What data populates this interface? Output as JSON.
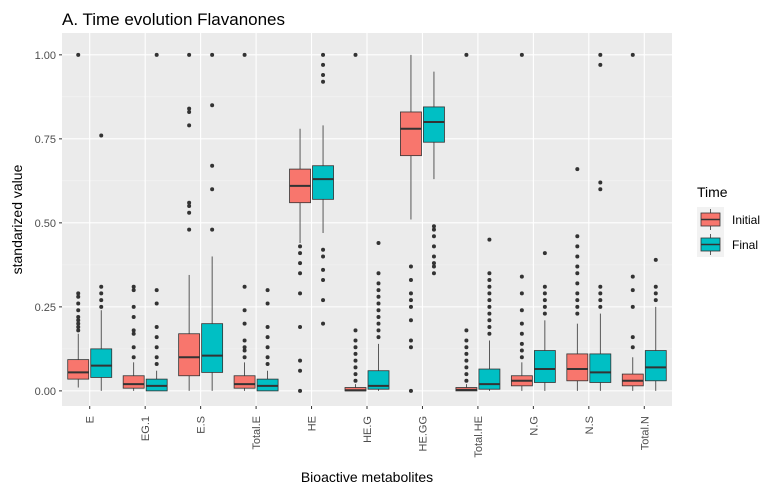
{
  "chart_data": {
    "type": "boxplot",
    "title": "A. Time evolution Flavanones",
    "xlabel": "Bioactive metabolites",
    "ylabel": "standarized value",
    "ylim": [
      -0.045,
      1.065
    ],
    "yticks": [
      0.0,
      0.25,
      0.5,
      0.75,
      1.0
    ],
    "ytick_labels": [
      "0.00",
      "0.25",
      "0.50",
      "0.75",
      "1.00"
    ],
    "grid": true,
    "legend": {
      "title": "Time",
      "placement": "right"
    },
    "categories": [
      "E",
      "EG.1",
      "E.S",
      "Total.E",
      "HE",
      "HE.G",
      "HE.GG",
      "Total.HE",
      "N.G",
      "N.S",
      "Total.N"
    ],
    "series": [
      {
        "name": "Initial",
        "color": "#F8766D",
        "boxes": [
          {
            "lower": 0.01,
            "q1": 0.035,
            "median": 0.055,
            "q3": 0.093,
            "upper": 0.17,
            "outliers": [
              0.18,
              0.19,
              0.2,
              0.21,
              0.22,
              0.24,
              0.26,
              0.28,
              0.29,
              1.0
            ]
          },
          {
            "lower": 0.0,
            "q1": 0.008,
            "median": 0.02,
            "q3": 0.045,
            "upper": 0.085,
            "outliers": [
              0.1,
              0.13,
              0.17,
              0.18,
              0.22,
              0.25,
              0.3,
              0.31
            ]
          },
          {
            "lower": 0.0,
            "q1": 0.045,
            "median": 0.1,
            "q3": 0.17,
            "upper": 0.345,
            "outliers": [
              0.48,
              0.53,
              0.55,
              0.56,
              0.79,
              0.83,
              0.84,
              1.0
            ]
          },
          {
            "lower": 0.0,
            "q1": 0.008,
            "median": 0.02,
            "q3": 0.045,
            "upper": 0.085,
            "outliers": [
              0.1,
              0.12,
              0.13,
              0.15,
              0.2,
              0.24,
              0.31,
              1.0
            ]
          },
          {
            "lower": 0.44,
            "q1": 0.56,
            "median": 0.61,
            "q3": 0.66,
            "upper": 0.78,
            "outliers": [
              0.0,
              0.06,
              0.09,
              0.19,
              0.29,
              0.35,
              0.38,
              0.41,
              0.43
            ]
          },
          {
            "lower": 0.0,
            "q1": 0.0,
            "median": 0.002,
            "q3": 0.01,
            "upper": 0.02,
            "outliers": [
              0.03,
              0.05,
              0.07,
              0.09,
              0.11,
              0.13,
              0.15,
              0.18,
              1.0
            ]
          },
          {
            "lower": 0.51,
            "q1": 0.7,
            "median": 0.78,
            "q3": 0.83,
            "upper": 1.0,
            "outliers": [
              0.0,
              0.13,
              0.15,
              0.21,
              0.25,
              0.27,
              0.29,
              0.33,
              0.37
            ]
          },
          {
            "lower": 0.0,
            "q1": 0.0,
            "median": 0.003,
            "q3": 0.01,
            "upper": 0.02,
            "outliers": [
              0.03,
              0.05,
              0.07,
              0.09,
              0.11,
              0.13,
              0.15,
              0.18,
              1.0
            ]
          },
          {
            "lower": 0.0,
            "q1": 0.015,
            "median": 0.03,
            "q3": 0.045,
            "upper": 0.085,
            "outliers": [
              0.1,
              0.12,
              0.14,
              0.17,
              0.2,
              0.24,
              0.29,
              0.34,
              1.0
            ]
          },
          {
            "lower": 0.0,
            "q1": 0.03,
            "median": 0.065,
            "q3": 0.11,
            "upper": 0.2,
            "outliers": [
              0.23,
              0.25,
              0.27,
              0.29,
              0.32,
              0.35,
              0.37,
              0.4,
              0.43,
              0.46,
              0.66
            ]
          },
          {
            "lower": 0.0,
            "q1": 0.015,
            "median": 0.03,
            "q3": 0.05,
            "upper": 0.1,
            "outliers": [
              0.13,
              0.16,
              0.25,
              0.3,
              0.34,
              1.0
            ]
          }
        ]
      },
      {
        "name": "Final",
        "color": "#00BFC4",
        "boxes": [
          {
            "lower": 0.0,
            "q1": 0.04,
            "median": 0.075,
            "q3": 0.125,
            "upper": 0.24,
            "outliers": [
              0.25,
              0.27,
              0.29,
              0.31,
              0.76
            ]
          },
          {
            "lower": 0.0,
            "q1": 0.0,
            "median": 0.015,
            "q3": 0.035,
            "upper": 0.06,
            "outliers": [
              0.08,
              0.1,
              0.13,
              0.16,
              0.19,
              0.26,
              0.3,
              1.0
            ]
          },
          {
            "lower": 0.0,
            "q1": 0.055,
            "median": 0.105,
            "q3": 0.2,
            "upper": 0.4,
            "outliers": [
              0.48,
              0.6,
              0.67,
              0.85,
              1.0
            ]
          },
          {
            "lower": 0.0,
            "q1": 0.0,
            "median": 0.015,
            "q3": 0.035,
            "upper": 0.06,
            "outliers": [
              0.08,
              0.1,
              0.13,
              0.16,
              0.19,
              0.26,
              0.3
            ]
          },
          {
            "lower": 0.47,
            "q1": 0.57,
            "median": 0.63,
            "q3": 0.67,
            "upper": 0.79,
            "outliers": [
              0.2,
              0.27,
              0.33,
              0.36,
              0.4,
              0.42,
              0.92,
              0.94,
              0.97,
              1.0
            ]
          },
          {
            "lower": 0.0,
            "q1": 0.005,
            "median": 0.015,
            "q3": 0.06,
            "upper": 0.14,
            "outliers": [
              0.16,
              0.18,
              0.2,
              0.22,
              0.24,
              0.26,
              0.28,
              0.3,
              0.32,
              0.35,
              0.44
            ]
          },
          {
            "lower": 0.63,
            "q1": 0.74,
            "median": 0.8,
            "q3": 0.845,
            "upper": 0.95,
            "outliers": [
              0.35,
              0.37,
              0.38,
              0.4,
              0.43,
              0.46,
              0.48,
              0.49
            ]
          },
          {
            "lower": 0.0,
            "q1": 0.005,
            "median": 0.02,
            "q3": 0.065,
            "upper": 0.15,
            "outliers": [
              0.17,
              0.19,
              0.21,
              0.23,
              0.25,
              0.27,
              0.29,
              0.31,
              0.33,
              0.35,
              0.45
            ]
          },
          {
            "lower": 0.0,
            "q1": 0.025,
            "median": 0.065,
            "q3": 0.12,
            "upper": 0.21,
            "outliers": [
              0.23,
              0.25,
              0.27,
              0.29,
              0.31,
              0.41
            ]
          },
          {
            "lower": 0.0,
            "q1": 0.025,
            "median": 0.055,
            "q3": 0.11,
            "upper": 0.23,
            "outliers": [
              0.25,
              0.27,
              0.29,
              0.31,
              0.6,
              0.62,
              0.97,
              1.0
            ]
          },
          {
            "lower": 0.0,
            "q1": 0.03,
            "median": 0.07,
            "q3": 0.12,
            "upper": 0.25,
            "outliers": [
              0.27,
              0.29,
              0.31,
              0.39
            ]
          }
        ]
      }
    ]
  }
}
